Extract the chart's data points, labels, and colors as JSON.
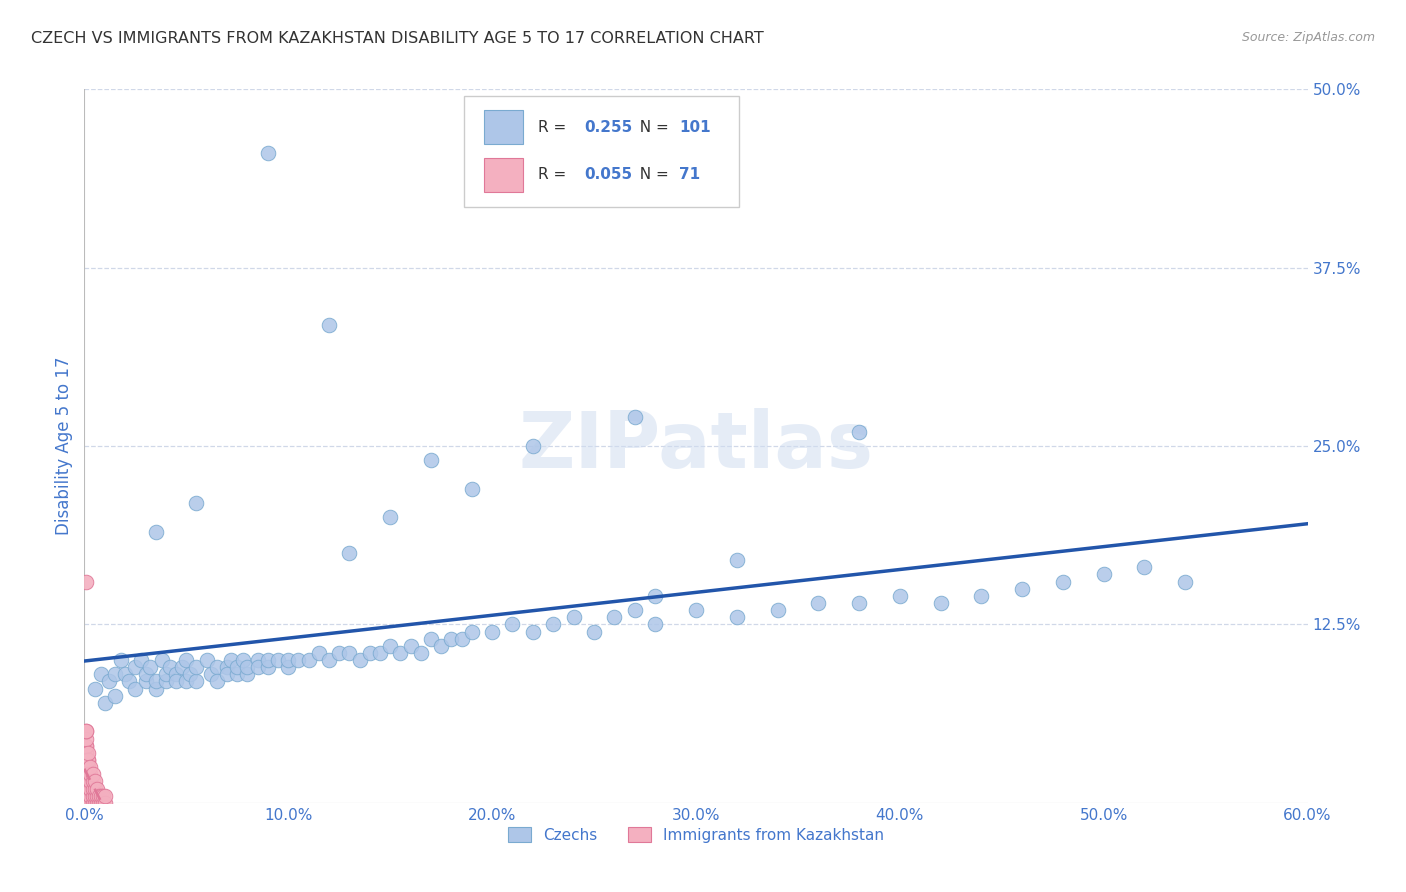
{
  "title": "CZECH VS IMMIGRANTS FROM KAZAKHSTAN DISABILITY AGE 5 TO 17 CORRELATION CHART",
  "source": "Source: ZipAtlas.com",
  "ylabel_label": "Disability Age 5 to 17",
  "watermark": "ZIPatlas",
  "xlim": [
    0.0,
    0.6
  ],
  "ylim": [
    0.0,
    0.5
  ],
  "xticks": [
    0.0,
    0.1,
    0.2,
    0.3,
    0.4,
    0.5,
    0.6
  ],
  "yticks_right": [
    0.125,
    0.25,
    0.375,
    0.5
  ],
  "ytick_labels_right": [
    "12.5%",
    "25.0%",
    "37.5%",
    "50.0%"
  ],
  "xtick_labels": [
    "0.0%",
    "10.0%",
    "20.0%",
    "30.0%",
    "40.0%",
    "50.0%",
    "60.0%"
  ],
  "series1_color": "#aec6e8",
  "series1_edge": "#7aaad0",
  "series1_line_color": "#2255aa",
  "series1_R": 0.255,
  "series1_N": 101,
  "series2_color": "#f4b0c0",
  "series2_edge": "#e07898",
  "series2_line_color": "#e07898",
  "series2_R": 0.055,
  "series2_N": 71,
  "legend_label1": "Czechs",
  "legend_label2": "Immigrants from Kazakhstan",
  "czechs_x": [
    0.005,
    0.008,
    0.01,
    0.012,
    0.015,
    0.015,
    0.018,
    0.02,
    0.022,
    0.025,
    0.025,
    0.028,
    0.03,
    0.03,
    0.032,
    0.035,
    0.035,
    0.038,
    0.04,
    0.04,
    0.042,
    0.045,
    0.045,
    0.048,
    0.05,
    0.05,
    0.052,
    0.055,
    0.055,
    0.06,
    0.062,
    0.065,
    0.065,
    0.07,
    0.07,
    0.072,
    0.075,
    0.075,
    0.078,
    0.08,
    0.08,
    0.085,
    0.085,
    0.09,
    0.09,
    0.095,
    0.1,
    0.1,
    0.105,
    0.11,
    0.115,
    0.12,
    0.125,
    0.13,
    0.135,
    0.14,
    0.145,
    0.15,
    0.155,
    0.16,
    0.165,
    0.17,
    0.175,
    0.18,
    0.185,
    0.19,
    0.2,
    0.21,
    0.22,
    0.23,
    0.24,
    0.25,
    0.26,
    0.27,
    0.28,
    0.3,
    0.32,
    0.34,
    0.36,
    0.38,
    0.4,
    0.42,
    0.44,
    0.46,
    0.48,
    0.5,
    0.52,
    0.54,
    0.15,
    0.32,
    0.27,
    0.19,
    0.38,
    0.12,
    0.28,
    0.09,
    0.055,
    0.035,
    0.22,
    0.17,
    0.13
  ],
  "czechs_y": [
    0.08,
    0.09,
    0.07,
    0.085,
    0.09,
    0.075,
    0.1,
    0.09,
    0.085,
    0.095,
    0.08,
    0.1,
    0.085,
    0.09,
    0.095,
    0.08,
    0.085,
    0.1,
    0.085,
    0.09,
    0.095,
    0.09,
    0.085,
    0.095,
    0.085,
    0.1,
    0.09,
    0.085,
    0.095,
    0.1,
    0.09,
    0.095,
    0.085,
    0.095,
    0.09,
    0.1,
    0.09,
    0.095,
    0.1,
    0.09,
    0.095,
    0.1,
    0.095,
    0.095,
    0.1,
    0.1,
    0.095,
    0.1,
    0.1,
    0.1,
    0.105,
    0.1,
    0.105,
    0.105,
    0.1,
    0.105,
    0.105,
    0.11,
    0.105,
    0.11,
    0.105,
    0.115,
    0.11,
    0.115,
    0.115,
    0.12,
    0.12,
    0.125,
    0.12,
    0.125,
    0.13,
    0.12,
    0.13,
    0.135,
    0.125,
    0.135,
    0.13,
    0.135,
    0.14,
    0.14,
    0.145,
    0.14,
    0.145,
    0.15,
    0.155,
    0.16,
    0.165,
    0.155,
    0.2,
    0.17,
    0.27,
    0.22,
    0.26,
    0.335,
    0.145,
    0.455,
    0.21,
    0.19,
    0.25,
    0.24,
    0.175
  ],
  "kaz_x": [
    0.001,
    0.001,
    0.001,
    0.001,
    0.001,
    0.001,
    0.001,
    0.001,
    0.001,
    0.001,
    0.001,
    0.001,
    0.001,
    0.001,
    0.001,
    0.001,
    0.001,
    0.001,
    0.001,
    0.001,
    0.001,
    0.001,
    0.001,
    0.001,
    0.001,
    0.001,
    0.001,
    0.001,
    0.001,
    0.001,
    0.002,
    0.002,
    0.002,
    0.002,
    0.002,
    0.002,
    0.002,
    0.002,
    0.002,
    0.002,
    0.002,
    0.002,
    0.002,
    0.002,
    0.002,
    0.003,
    0.003,
    0.003,
    0.003,
    0.003,
    0.003,
    0.004,
    0.004,
    0.004,
    0.004,
    0.004,
    0.005,
    0.005,
    0.005,
    0.005,
    0.006,
    0.006,
    0.006,
    0.007,
    0.007,
    0.008,
    0.008,
    0.009,
    0.009,
    0.01,
    0.01
  ],
  "kaz_y": [
    0.0,
    0.0,
    0.0,
    0.0,
    0.0,
    0.0,
    0.0,
    0.005,
    0.005,
    0.005,
    0.01,
    0.01,
    0.01,
    0.015,
    0.015,
    0.015,
    0.02,
    0.02,
    0.025,
    0.025,
    0.03,
    0.03,
    0.035,
    0.035,
    0.04,
    0.04,
    0.045,
    0.05,
    0.05,
    0.155,
    0.0,
    0.0,
    0.005,
    0.005,
    0.01,
    0.01,
    0.015,
    0.015,
    0.02,
    0.02,
    0.025,
    0.025,
    0.03,
    0.03,
    0.035,
    0.0,
    0.005,
    0.01,
    0.015,
    0.02,
    0.025,
    0.0,
    0.005,
    0.01,
    0.015,
    0.02,
    0.0,
    0.005,
    0.01,
    0.015,
    0.0,
    0.005,
    0.01,
    0.0,
    0.005,
    0.0,
    0.005,
    0.0,
    0.005,
    0.0,
    0.005
  ],
  "bg_color": "#ffffff",
  "grid_color": "#d0d8e8",
  "title_color": "#333333",
  "axis_label_color": "#4477cc",
  "tick_label_color": "#4477cc"
}
